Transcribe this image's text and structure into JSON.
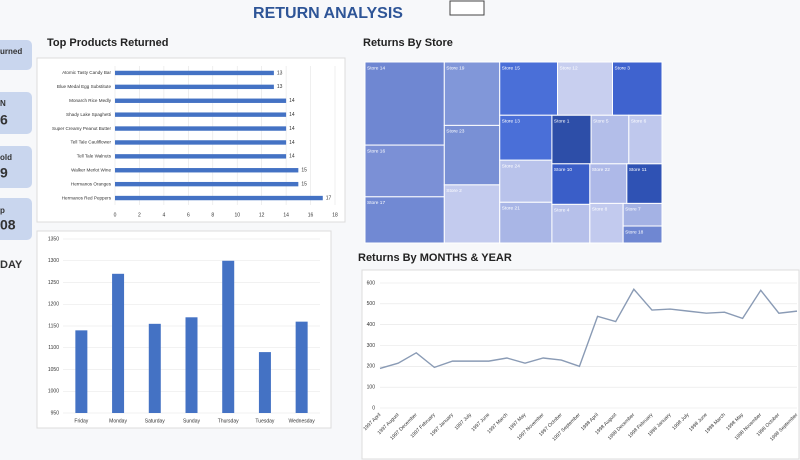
{
  "header": {
    "title": "RETURN ANALYSIS"
  },
  "kpi_cards": [
    {
      "label": "urned"
    },
    {
      "label": "N",
      "value": "6"
    },
    {
      "label": "old",
      "value": "9"
    },
    {
      "label": "p",
      "value": "08"
    }
  ],
  "side_label": "DAY",
  "chart_data": [
    {
      "type": "hbar",
      "title": "Top Products Returned",
      "categories": [
        "Atomic Tasty Candy Bar",
        "Blue Medal Egg Substitute",
        "Monarch Rice Medly",
        "Shady Lake Spaghetti",
        "Super Creamy Peanut Butter",
        "Tell Tale Cauliflower",
        "Tell Tale Walnuts",
        "Walker Merlot Wine",
        "Hermanos Oranges",
        "Hermanos Red Peppers"
      ],
      "values": [
        13,
        13,
        14,
        14,
        14,
        14,
        14,
        15,
        15,
        17
      ],
      "color": "#4472c4",
      "xlim": [
        0,
        18
      ],
      "xticks": [
        0,
        2,
        4,
        6,
        8,
        10,
        12,
        14,
        16,
        18
      ],
      "grid": true
    },
    {
      "type": "treemap",
      "title": "Returns By Store",
      "categories": [
        "Store 14",
        "Store 16",
        "Store 17",
        "Store 19",
        "Store 23",
        "Store 2",
        "Store 15",
        "Store 12",
        "Store 3",
        "Store 13",
        "Store 24",
        "Store 21",
        "Store 1",
        "Store 5",
        "Store 6",
        "Store 10",
        "Store 4",
        "Store 22",
        "Store 11",
        "Store 8",
        "Store 7",
        "Store 18"
      ],
      "values": [
        900,
        560,
        500,
        480,
        450,
        440,
        420,
        400,
        360,
        320,
        300,
        290,
        260,
        250,
        220,
        210,
        200,
        200,
        190,
        180,
        120,
        90
      ],
      "colors": [
        "#6f87d2",
        "#7b90d6",
        "#7189d3",
        "#8197d9",
        "#7990d5",
        "#c3cbee",
        "#4a6fd8",
        "#c8cfef",
        "#3f63cf",
        "#4a6fd8",
        "#b9c3eb",
        "#a9b6e6",
        "#2d4ea8",
        "#b3bee9",
        "#bfc8ed",
        "#3a5ec8",
        "#b6c0ea",
        "#aeb9e8",
        "#2f52b4",
        "#c2caee",
        "#a4b2e4",
        "#6f87d2"
      ]
    },
    {
      "type": "bar",
      "categories": [
        "Friday",
        "Monday",
        "Saturday",
        "Sunday",
        "Thursday",
        "Tuesday",
        "Wednesday"
      ],
      "values": [
        1140,
        1270,
        1155,
        1170,
        1300,
        1090,
        1160
      ],
      "color": "#4472c4",
      "ylim": [
        950,
        1350
      ],
      "yticks": [
        950,
        1000,
        1050,
        1100,
        1150,
        1200,
        1250,
        1300,
        1350
      ],
      "grid": true
    },
    {
      "type": "line",
      "title": "Returns By MONTHS  & YEAR",
      "categories": [
        "1997 April",
        "1997 August",
        "1997 December",
        "1997 February",
        "1997 January",
        "1997 July",
        "1997 June",
        "1997 March",
        "1997 May",
        "1997 November",
        "1997 October",
        "1997 September",
        "1998 April",
        "1998 August",
        "1998 December",
        "1998 February",
        "1998 January",
        "1998 July",
        "1998 June",
        "1998 March",
        "1998 May",
        "1998 November",
        "1998 October",
        "1998 September"
      ],
      "values": [
        190,
        215,
        265,
        195,
        225,
        225,
        225,
        240,
        215,
        240,
        230,
        200,
        440,
        415,
        570,
        470,
        475,
        465,
        455,
        460,
        430,
        565,
        455,
        465
      ],
      "color": "#8a9bb5",
      "ylim": [
        0,
        600
      ],
      "yticks": [
        0,
        100,
        200,
        300,
        400,
        500,
        600
      ],
      "grid": true
    }
  ]
}
